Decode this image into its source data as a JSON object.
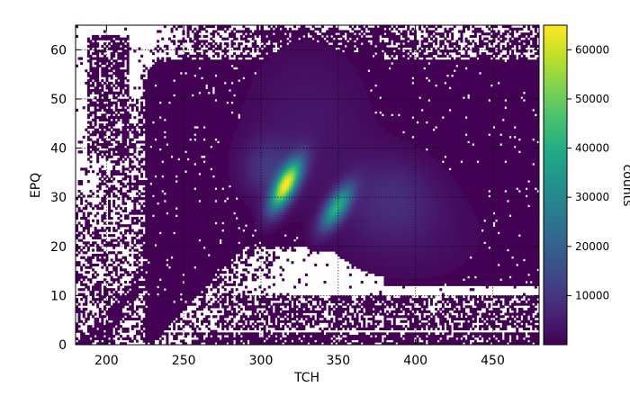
{
  "chart_data": {
    "type": "heatmap",
    "xlabel": "TCH",
    "ylabel": "EPQ",
    "xlim": [
      180,
      480
    ],
    "ylim": [
      0,
      65
    ],
    "x_ticks": [
      200,
      250,
      300,
      350,
      400,
      450
    ],
    "y_ticks": [
      0,
      10,
      20,
      30,
      40,
      50,
      60
    ],
    "grid": true,
    "grid_style": "dotted",
    "colormap": "viridis",
    "colorbar": {
      "label": "counts",
      "range": [
        0,
        65000
      ],
      "ticks": [
        10000,
        20000,
        30000,
        40000,
        50000,
        60000
      ]
    },
    "empty_bin_color": "#ffffff",
    "peaks": [
      {
        "tch": 316,
        "epq": 32.5,
        "counts": 60000
      },
      {
        "tch": 349,
        "epq": 28,
        "counts": 38000
      }
    ],
    "colors": {
      "viridis_low": "#440154",
      "viridis_mid": "#21918c",
      "viridis_high": "#fde725"
    }
  }
}
